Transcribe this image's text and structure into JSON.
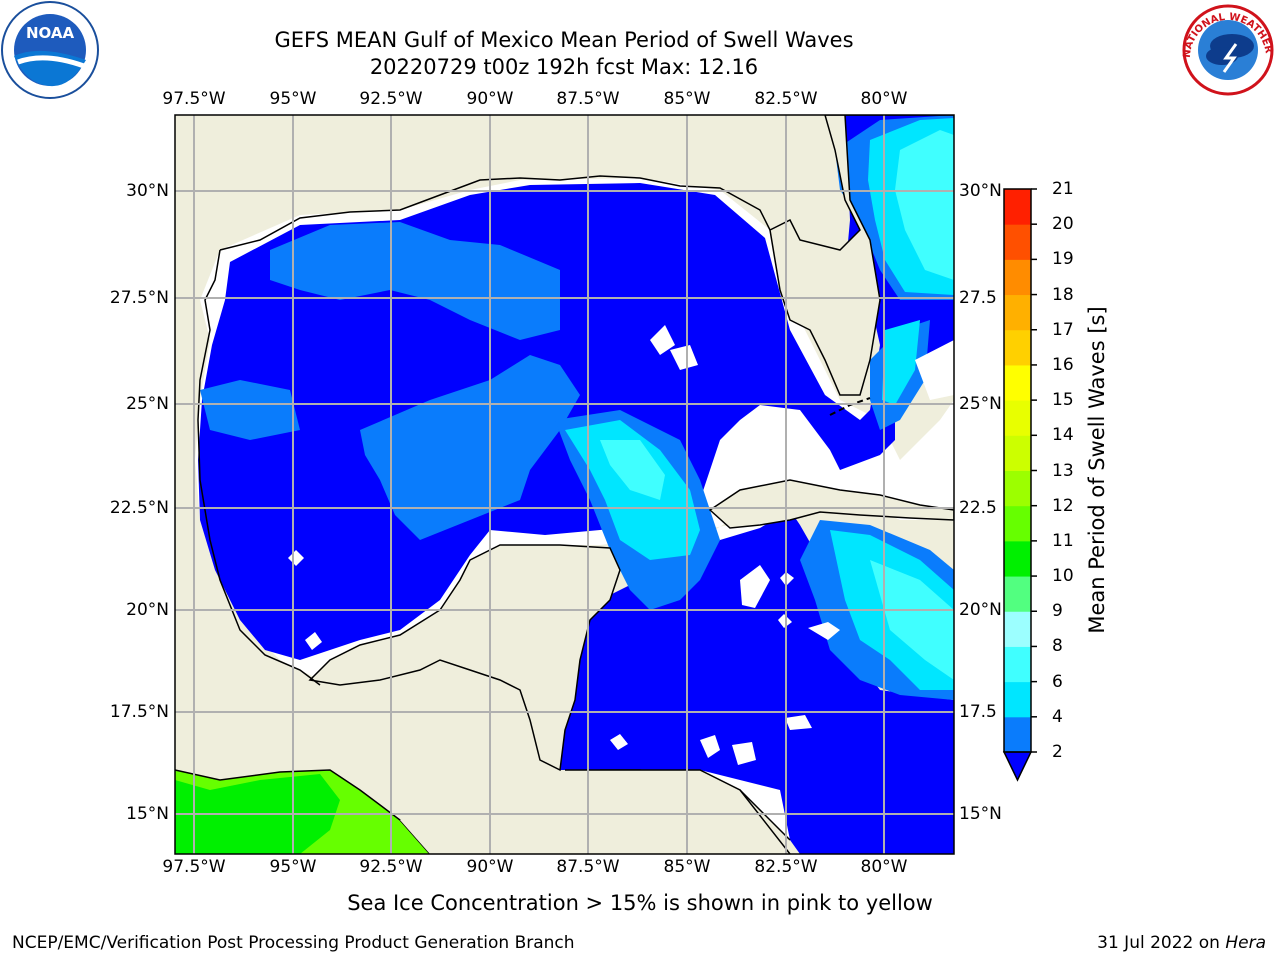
{
  "title": {
    "line1": "GEFS MEAN Gulf of Mexico Mean Period of Swell Waves",
    "line2": "20220729 t00z 192h fcst   Max: 12.16"
  },
  "axes": {
    "lon_labels": [
      "97.5°W",
      "95°W",
      "92.5°W",
      "90°W",
      "87.5°W",
      "85°W",
      "82.5°W",
      "80°W"
    ],
    "lat_labels_left": [
      "30°N",
      "27.5°N",
      "25°N",
      "22.5°N",
      "20°N",
      "17.5°N",
      "15°N"
    ],
    "lat_labels_right": [
      "30°N",
      "27.5",
      "25°N",
      "22.5",
      "20°N",
      "17.5",
      "15°N"
    ]
  },
  "colorbar": {
    "label": "Mean Period of Swell Waves [s]",
    "ticks": [
      "2",
      "4",
      "6",
      "8",
      "9",
      "10",
      "11",
      "12",
      "13",
      "14",
      "15",
      "16",
      "17",
      "18",
      "19",
      "20",
      "21"
    ],
    "colors": [
      "#0a7cfc",
      "#00e6ff",
      "#40ffff",
      "#9cffff",
      "#52ff80",
      "#00f000",
      "#66ff00",
      "#9cff00",
      "#ccff00",
      "#e8ff00",
      "#ffff00",
      "#ffd000",
      "#ffb000",
      "#ff8c00",
      "#ff5000",
      "#ff2000"
    ],
    "under_color": "#0000ff"
  },
  "colors": {
    "land": "#efeedc",
    "sea_blue": "#0000ff",
    "light_blue": "#0a7cfc",
    "cyan": "#00e6ff",
    "pale_cyan": "#40ffff",
    "green": "#00f000",
    "lime": "#66ff00",
    "grid": "#b0b0b0"
  },
  "bottom_note": "Sea Ice Concentration > 15% is shown in pink to yellow",
  "footer": {
    "left": "NCEP/EMC/Verification Post Processing Product Generation Branch",
    "right_date": "31 Jul 2022 on ",
    "right_machine": "Hera"
  },
  "logos": {
    "noaa_text": "NOAA",
    "nws_text": "NATIONAL WEATHER SERVICE"
  }
}
